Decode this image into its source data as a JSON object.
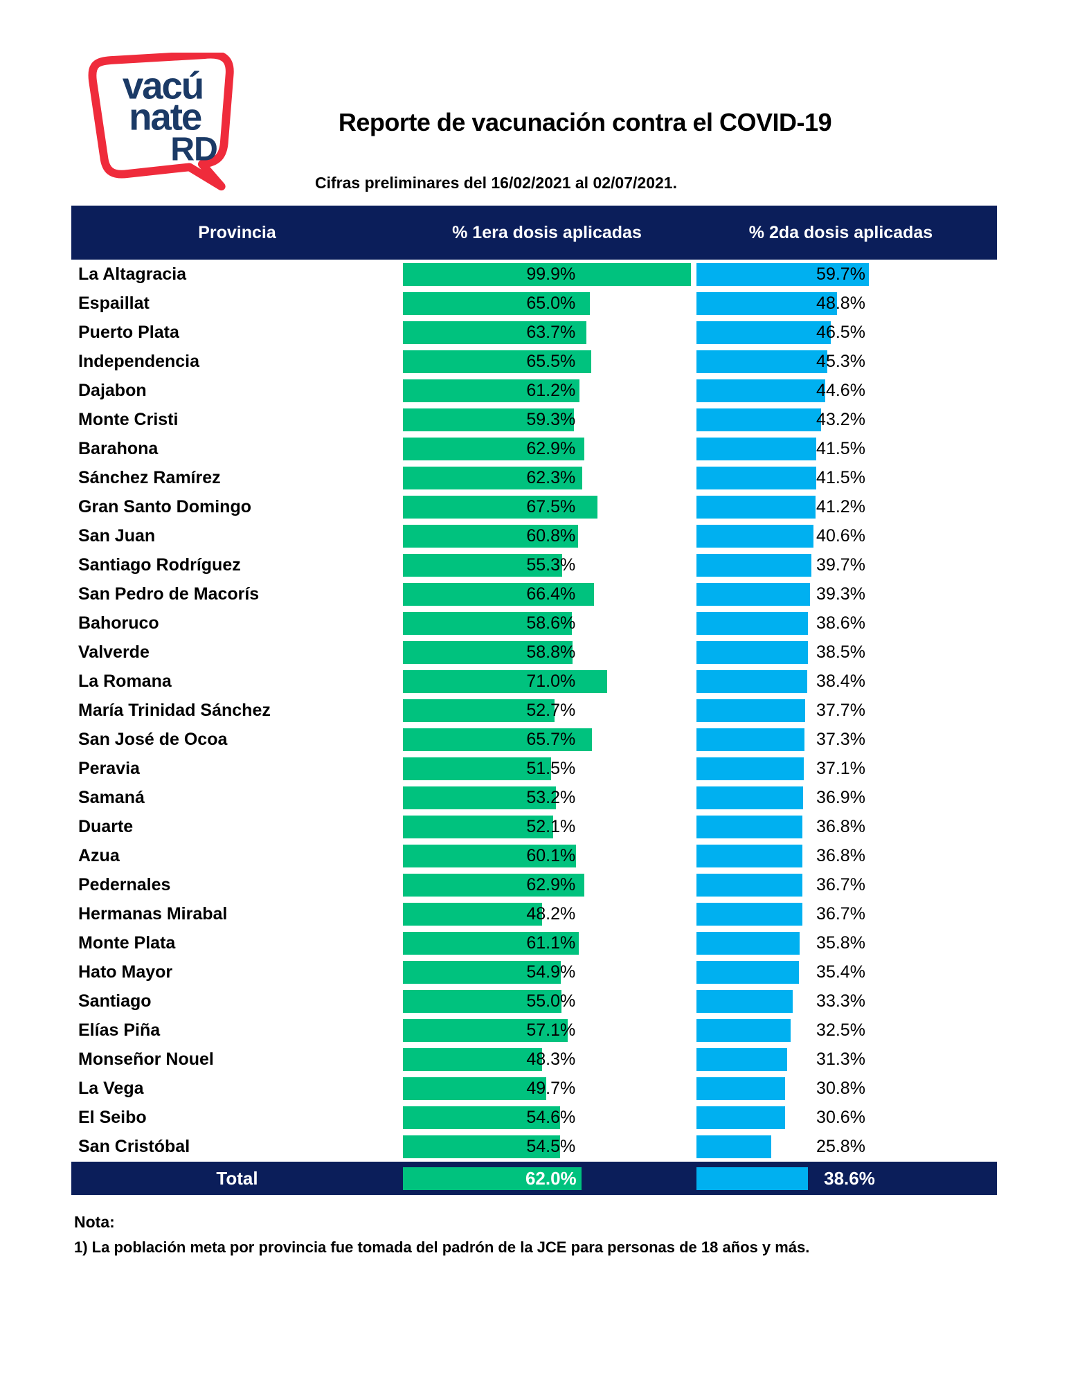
{
  "page": {
    "title": "Reporte de vacunación contra el COVID-19",
    "subtitle": "Cifras preliminares del 16/02/2021 al 02/07/2021."
  },
  "logo": {
    "line1": "vacú",
    "line2": "nate",
    "line3": "RD",
    "bubble_color": "#EF2B3B",
    "text_color": "#1B3A66"
  },
  "table": {
    "columns": [
      "Provincia",
      "% 1era dosis aplicadas",
      "% 2da dosis aplicadas"
    ],
    "total_label": "Total"
  },
  "note": {
    "heading": "Nota:",
    "line1": "1) La población meta por provincia fue tomada del padrón de la JCE para personas de 18 años y más."
  },
  "colors": {
    "header_navy": "#0B1E5A",
    "dose1_green": "#00C27E",
    "dose2_blue": "#00B0F0"
  },
  "chart_data": {
    "type": "bar",
    "orientation": "horizontal",
    "title": "Reporte de vacunación contra el COVID-19",
    "subtitle": "Cifras preliminares del 16/02/2021 al 02/07/2021.",
    "xlim": [
      0,
      100
    ],
    "value_format": "0.0%",
    "categories": [
      "La Altagracia",
      "Espaillat",
      "Puerto Plata",
      "Independencia",
      "Dajabon",
      "Monte Cristi",
      "Barahona",
      "Sánchez Ramírez",
      "Gran Santo Domingo",
      "San Juan",
      "Santiago Rodríguez",
      "San Pedro de Macorís",
      "Bahoruco",
      "Valverde",
      "La Romana",
      "María Trinidad Sánchez",
      "San José de Ocoa",
      "Peravia",
      "Samaná",
      "Duarte",
      "Azua",
      "Pedernales",
      "Hermanas Mirabal",
      "Monte Plata",
      "Hato Mayor",
      "Santiago",
      "Elías Piña",
      "Monseñor Nouel",
      "La Vega",
      "El Seibo",
      "San Cristóbal"
    ],
    "series": [
      {
        "name": "% 1era dosis aplicadas",
        "color": "#00C27E",
        "values": [
          99.9,
          65.0,
          63.7,
          65.5,
          61.2,
          59.3,
          62.9,
          62.3,
          67.5,
          60.8,
          55.3,
          66.4,
          58.6,
          58.8,
          71.0,
          52.7,
          65.7,
          51.5,
          53.2,
          52.1,
          60.1,
          62.9,
          48.2,
          61.1,
          54.9,
          55.0,
          57.1,
          48.3,
          49.7,
          54.6,
          54.5
        ]
      },
      {
        "name": "% 2da dosis aplicadas",
        "color": "#00B0F0",
        "values": [
          59.7,
          48.8,
          46.5,
          45.3,
          44.6,
          43.2,
          41.5,
          41.5,
          41.2,
          40.6,
          39.7,
          39.3,
          38.6,
          38.5,
          38.4,
          37.7,
          37.3,
          37.1,
          36.9,
          36.8,
          36.8,
          36.7,
          36.7,
          35.8,
          35.4,
          33.3,
          32.5,
          31.3,
          30.8,
          30.6,
          25.8
        ]
      }
    ],
    "total": {
      "label": "Total",
      "dose1": 62.0,
      "dose2": 38.6
    }
  }
}
